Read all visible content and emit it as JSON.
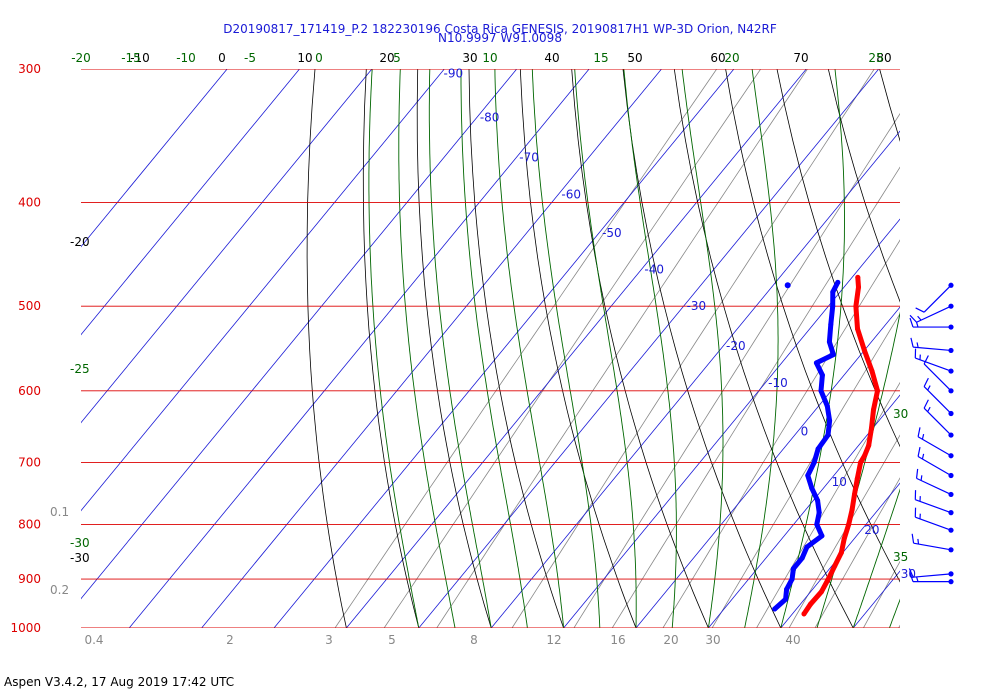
{
  "chart_data": {
    "type": "line",
    "title": "D20190817_171419_P.2 182230196 Costa Rica GENESIS, 20190817H1 WP-3D Orion, N42RF",
    "subtitle": "N10.9997 W91.0098",
    "xlabel": "",
    "ylabel": "",
    "ylim": [
      1000,
      300
    ],
    "y_scale": "log",
    "grid": true,
    "colors": {
      "isobar": "#dd0000",
      "isotherm": "#1a1ad6",
      "dry_adiabat": "#000000",
      "moist_adiabat": "#006600",
      "mixing_ratio": "#888888",
      "temperature": "#ff0000",
      "dewpoint": "#0000ff",
      "title": "#1a1ad6"
    },
    "pressure_levels": [
      300,
      400,
      500,
      600,
      700,
      800,
      900,
      1000
    ],
    "pressure_level_labels": [
      "300",
      "400",
      "500",
      "600",
      "700",
      "800",
      "900",
      "1000"
    ],
    "isotherm_labels": [
      "-90",
      "-80",
      "-70",
      "-60",
      "-50",
      "-40",
      "-30",
      "-20",
      "-10",
      "0",
      "10",
      "20",
      "30"
    ],
    "top_dry_labels": [
      "-10",
      "0",
      "10",
      "20",
      "30",
      "40",
      "50",
      "60",
      "70",
      "80"
    ],
    "top_moist_labels": [
      "-20",
      "-15",
      "-10",
      "-5",
      "0",
      "5",
      "10",
      "15",
      "20",
      "25"
    ],
    "left_dry_labels": [
      "-20",
      "-30"
    ],
    "left_moist_labels": [
      "-25",
      "-30"
    ],
    "right_moist_labels": [
      "30",
      "35"
    ],
    "left_mixing_labels": [
      "0.1",
      "0.2"
    ],
    "bottom_mixing_labels": [
      "0.4",
      "2",
      "3",
      "5",
      "8",
      "12",
      "16",
      "20",
      "30",
      "40"
    ],
    "series": [
      {
        "name": "",
        "key": "temperature",
        "points": [
          [
            970,
            21.6
          ],
          [
            950,
            21.4
          ],
          [
            925,
            21.5
          ],
          [
            900,
            21.0
          ],
          [
            875,
            20.4
          ],
          [
            850,
            19.8
          ],
          [
            825,
            18.6
          ],
          [
            800,
            17.6
          ],
          [
            775,
            16.4
          ],
          [
            750,
            15.0
          ],
          [
            725,
            13.6
          ],
          [
            700,
            12.2
          ],
          [
            690,
            12.0
          ],
          [
            675,
            11.4
          ],
          [
            650,
            9.8
          ],
          [
            625,
            8.0
          ],
          [
            600,
            6.4
          ],
          [
            575,
            3.4
          ],
          [
            550,
            0.0
          ],
          [
            525,
            -3.4
          ],
          [
            500,
            -6.2
          ],
          [
            480,
            -8.0
          ],
          [
            470,
            -9.2
          ]
        ]
      },
      {
        "name": "",
        "key": "dewpoint",
        "points": [
          [
            960,
            17.0
          ],
          [
            940,
            17.4
          ],
          [
            920,
            16.4
          ],
          [
            900,
            16.0
          ],
          [
            880,
            15.0
          ],
          [
            860,
            15.0
          ],
          [
            840,
            14.4
          ],
          [
            820,
            15.2
          ],
          [
            800,
            13.2
          ],
          [
            780,
            12.2
          ],
          [
            760,
            10.6
          ],
          [
            740,
            8.4
          ],
          [
            720,
            6.4
          ],
          [
            700,
            5.8
          ],
          [
            680,
            4.8
          ],
          [
            660,
            4.6
          ],
          [
            640,
            3.2
          ],
          [
            620,
            1.2
          ],
          [
            600,
            -1.4
          ],
          [
            580,
            -3.0
          ],
          [
            565,
            -5.2
          ],
          [
            555,
            -3.8
          ],
          [
            540,
            -5.8
          ],
          [
            520,
            -7.6
          ],
          [
            500,
            -9.4
          ],
          [
            485,
            -11.0
          ],
          [
            475,
            -11.4
          ]
        ],
        "extra_points": [
          [
            478,
            -18.0
          ]
        ]
      }
    ],
    "wind_barbs": [
      {
        "p": 478,
        "speed_kt": 10,
        "dir": 225
      },
      {
        "p": 500,
        "speed_kt": 15,
        "dir": 245
      },
      {
        "p": 523,
        "speed_kt": 15,
        "dir": 270
      },
      {
        "p": 550,
        "speed_kt": 15,
        "dir": 275
      },
      {
        "p": 575,
        "speed_kt": 15,
        "dir": 290
      },
      {
        "p": 600,
        "speed_kt": 10,
        "dir": 315
      },
      {
        "p": 630,
        "speed_kt": 15,
        "dir": 315
      },
      {
        "p": 660,
        "speed_kt": 15,
        "dir": 315
      },
      {
        "p": 690,
        "speed_kt": 15,
        "dir": 300
      },
      {
        "p": 720,
        "speed_kt": 15,
        "dir": 300
      },
      {
        "p": 750,
        "speed_kt": 15,
        "dir": 295
      },
      {
        "p": 780,
        "speed_kt": 15,
        "dir": 290
      },
      {
        "p": 810,
        "speed_kt": 15,
        "dir": 290
      },
      {
        "p": 845,
        "speed_kt": 15,
        "dir": 280
      },
      {
        "p": 890,
        "speed_kt": 10,
        "dir": 265
      },
      {
        "p": 905,
        "speed_kt": 15,
        "dir": 270
      }
    ]
  },
  "footer": "Aspen V3.4.2, 17 Aug 2019  17:42 UTC"
}
